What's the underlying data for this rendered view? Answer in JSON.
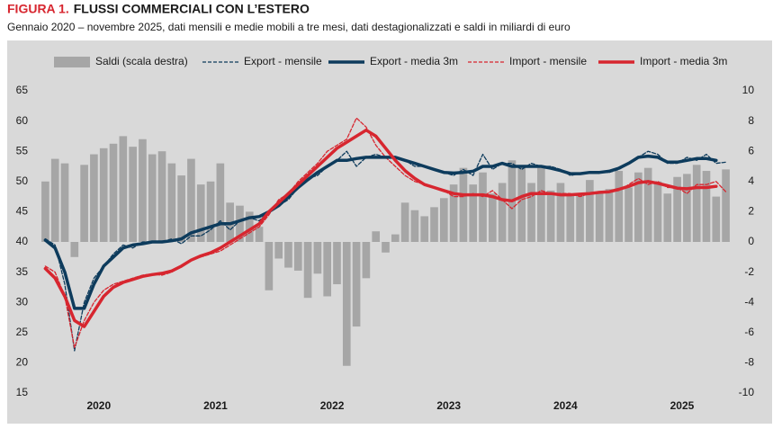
{
  "chart_data": {
    "type": "combo",
    "label": "FIGURA 1.",
    "title": "FLUSSI COMMERCIALI CON L’ESTERO",
    "subtitle": "Gennaio 2020 – novembre 2025, dati mensili e medie mobili a tre mesi, dati destagionalizzati e saldi in miliardi di euro",
    "categories": [
      null,
      null,
      null,
      null,
      null,
      "2020",
      null,
      null,
      null,
      null,
      null,
      null,
      null,
      null,
      null,
      null,
      null,
      "2021",
      null,
      null,
      null,
      null,
      null,
      null,
      null,
      null,
      null,
      null,
      null,
      "2022",
      null,
      null,
      null,
      null,
      null,
      null,
      null,
      null,
      null,
      null,
      null,
      "2023",
      null,
      null,
      null,
      null,
      null,
      null,
      null,
      null,
      null,
      null,
      null,
      "2024",
      null,
      null,
      null,
      null,
      null,
      null,
      null,
      null,
      null,
      null,
      null,
      "2025",
      null,
      null,
      null,
      null,
      null
    ],
    "ylim": [
      15,
      65
    ],
    "yticks": [
      15,
      20,
      25,
      30,
      35,
      40,
      45,
      50,
      55,
      60,
      65
    ],
    "y2lim": [
      -10,
      10
    ],
    "y2ticks": [
      -10,
      -8,
      -6,
      -4,
      -2,
      0,
      2,
      4,
      6,
      8,
      10
    ],
    "series": [
      {
        "name": "Saldi (scala destra)",
        "style": "bar",
        "axis": "y2",
        "color": "#a6a6a6",
        "values": [
          4.0,
          5.5,
          5.2,
          -1.0,
          5.1,
          5.8,
          6.2,
          6.5,
          7.0,
          6.3,
          6.8,
          5.8,
          6.0,
          5.2,
          4.4,
          5.5,
          3.8,
          4.0,
          5.2,
          2.6,
          2.4,
          2.0,
          1.0,
          -3.2,
          -1.1,
          -1.7,
          -1.9,
          -3.7,
          -2.1,
          -3.6,
          -2.8,
          -8.2,
          -5.6,
          -2.4,
          0.7,
          -0.7,
          0.5,
          2.6,
          2.1,
          1.7,
          2.3,
          2.9,
          3.8,
          4.9,
          3.8,
          4.6,
          3.2,
          3.9,
          5.4,
          4.9,
          3.9,
          4.9,
          3.4,
          3.9,
          3.2,
          3.2,
          4.1,
          3.3,
          3.5,
          4.7,
          3.6,
          4.6,
          4.9,
          4.0,
          3.2,
          4.3,
          4.5,
          5.1,
          4.7,
          3.0,
          4.8
        ]
      },
      {
        "name": "Export - mensile",
        "style": "dashed",
        "color": "#0d3b5c",
        "values": [
          40.5,
          39.5,
          33,
          22,
          30,
          34,
          36,
          38,
          39.5,
          39,
          40,
          40,
          40,
          40.5,
          39.7,
          41,
          41,
          42,
          43.5,
          42,
          43.5,
          44,
          43.5,
          45,
          46,
          47,
          49,
          50.5,
          51,
          52.5,
          53.5,
          55,
          52.5,
          54,
          54.5,
          54,
          54,
          53.5,
          52.5,
          52.5,
          52,
          51.5,
          51,
          52,
          51,
          54.5,
          52,
          53,
          53,
          52,
          53,
          52.5,
          52.5,
          52,
          51,
          51.3,
          51.5,
          51.5,
          51.5,
          52,
          53,
          54,
          55,
          54.5,
          53,
          53,
          54,
          53.5,
          54.5,
          53,
          53.2
        ]
      },
      {
        "name": "Export - media 3m",
        "style": "solid",
        "color": "#0d3b5c",
        "values": [
          40.3,
          39,
          35,
          29,
          29,
          33,
          36,
          37.5,
          39,
          39.5,
          39.7,
          40,
          40,
          40.2,
          40.5,
          41.5,
          42,
          42.5,
          43,
          43,
          43.5,
          44,
          44.2,
          45,
          46,
          47.5,
          49,
          50.3,
          51.5,
          52.5,
          53.5,
          53.5,
          53.8,
          54,
          54,
          54,
          54,
          53.5,
          53,
          52.5,
          52,
          51.5,
          51.4,
          51.5,
          51.7,
          52.5,
          52.5,
          53,
          52.5,
          52.5,
          52.5,
          52.5,
          52.2,
          51.8,
          51.3,
          51.3,
          51.5,
          51.5,
          51.7,
          52.2,
          53,
          54,
          54.2,
          54,
          53.2,
          53.2,
          53.5,
          53.8,
          53.8,
          53.5,
          null
        ]
      },
      {
        "name": "Import - mensile",
        "style": "dashed",
        "color": "#d7262f",
        "values": [
          36,
          35,
          31,
          22.5,
          27,
          30,
          32,
          33,
          33.5,
          34,
          34.5,
          34.7,
          34.5,
          35,
          36,
          37,
          37.5,
          38,
          38.5,
          39.5,
          40.5,
          41.5,
          42.5,
          44.5,
          47,
          48,
          50,
          51.5,
          53,
          55,
          56,
          57,
          60.5,
          59,
          56,
          54,
          52.5,
          51,
          50,
          49.5,
          49,
          48.5,
          47.5,
          47.5,
          48,
          47.5,
          48.5,
          47,
          45.5,
          47,
          47.5,
          48.5,
          48,
          48,
          48,
          47.5,
          48,
          48.2,
          48.3,
          48.5,
          49.5,
          50.5,
          49.5,
          50,
          49,
          49,
          48,
          49.5,
          49.5,
          50,
          48.3
        ]
      },
      {
        "name": "Import - media 3m",
        "style": "solid",
        "color": "#d7262f",
        "values": [
          35.6,
          34,
          31,
          27,
          26,
          28.5,
          31,
          32.5,
          33.3,
          33.8,
          34.3,
          34.6,
          34.8,
          35.2,
          36,
          37,
          37.7,
          38.2,
          39,
          40,
          41,
          42,
          43,
          45,
          46.5,
          48,
          49.5,
          51,
          52.5,
          54,
          55.5,
          56.5,
          57.5,
          58.5,
          57.5,
          55.5,
          53.5,
          51.8,
          50.5,
          49.5,
          49,
          48.5,
          48,
          47.8,
          47.8,
          47.8,
          47.5,
          47,
          46.8,
          47.5,
          48,
          48,
          48,
          47.8,
          47.8,
          47.9,
          48,
          48.2,
          48.3,
          48.7,
          49.2,
          49.8,
          50,
          49.7,
          49.3,
          48.9,
          48.8,
          49,
          49,
          49.2,
          null
        ]
      }
    ]
  }
}
